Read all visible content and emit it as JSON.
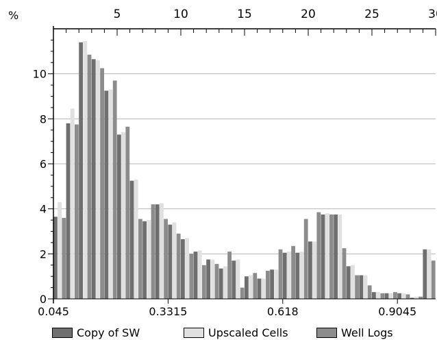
{
  "chart_data": {
    "type": "bar",
    "ylabel": "%",
    "ylim": [
      0,
      12
    ],
    "y_ticks": [
      0,
      2,
      4,
      6,
      8,
      10
    ],
    "x_bottom_ticks": [
      "0.045",
      "0.3315",
      "0.618",
      "0.9045"
    ],
    "x_top_ticks": [
      "5",
      "10",
      "15",
      "20",
      "25",
      "30"
    ],
    "bin_count": 30,
    "grid": true,
    "legend_position": "bottom",
    "series": [
      {
        "name": "Copy of SW",
        "color": "#6f6f6f",
        "values": [
          3.65,
          7.8,
          11.4,
          10.65,
          9.25,
          7.3,
          5.25,
          3.45,
          4.2,
          3.3,
          2.65,
          2.1,
          1.75,
          1.35,
          1.7,
          1.0,
          0.9,
          1.3,
          2.05,
          2.05,
          2.55,
          3.75,
          3.75,
          1.45,
          1.05,
          0.3,
          0.25,
          0.25,
          0.05,
          2.2
        ]
      },
      {
        "name": "Upscaled Cells",
        "color": "#e0e0e0",
        "values": [
          4.3,
          8.45,
          11.45,
          10.6,
          9.3,
          7.4,
          5.3,
          3.5,
          4.25,
          3.4,
          2.7,
          2.15,
          1.75,
          1.45,
          1.75,
          1.05,
          0.9,
          1.3,
          2.1,
          2.1,
          2.55,
          3.8,
          3.75,
          1.5,
          1.05,
          0.3,
          0.25,
          0.25,
          0.1,
          2.2
        ]
      },
      {
        "name": "Well Logs",
        "color": "#8c8c8c",
        "values": [
          3.6,
          7.75,
          10.85,
          10.25,
          9.7,
          7.65,
          3.55,
          4.2,
          3.55,
          2.9,
          2.0,
          1.5,
          1.55,
          2.1,
          0.5,
          1.15,
          1.25,
          2.2,
          2.35,
          3.55,
          3.85,
          3.75,
          2.25,
          1.05,
          0.6,
          0.25,
          0.3,
          0.2,
          0.1,
          1.7
        ]
      }
    ]
  }
}
